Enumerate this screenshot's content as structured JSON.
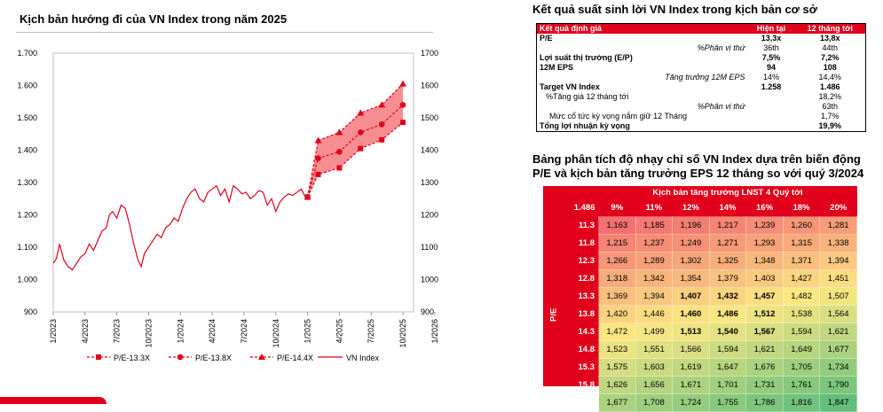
{
  "left_title": "Kịch bản hướng đi của VN Index trong năm 2025",
  "chart_data": {
    "type": "line",
    "title": "Kịch bản hướng đi của VN Index trong năm 2025",
    "ylim": [
      900,
      1700
    ],
    "yticks_left": [
      "1.700",
      "1.600",
      "1.500",
      "1.400",
      "1.300",
      "1.200",
      "1.100",
      "1.000",
      "900"
    ],
    "yticks_right": [
      "1700",
      "1600",
      "1500",
      "1400",
      "1300",
      "1200",
      "1100",
      "1000",
      "900"
    ],
    "xticks": [
      "1/2023",
      "4/2023",
      "7/2023",
      "10/2023",
      "1/2024",
      "4/2024",
      "7/2024",
      "10/2024",
      "1/2025",
      "4/2025",
      "7/2025",
      "10/2025",
      "1/2026"
    ],
    "legend": [
      "P/E-13.3X",
      "P/E-13.8X",
      "P/E-14.4X",
      "VN Index"
    ],
    "vnindex": [
      [
        0,
        1050
      ],
      [
        0.3,
        1065
      ],
      [
        0.6,
        1110
      ],
      [
        1,
        1060
      ],
      [
        1.4,
        1040
      ],
      [
        1.8,
        1030
      ],
      [
        2.2,
        1050
      ],
      [
        2.6,
        1070
      ],
      [
        3,
        1080
      ],
      [
        3.4,
        1110
      ],
      [
        3.8,
        1090
      ],
      [
        4.2,
        1120
      ],
      [
        4.6,
        1150
      ],
      [
        5,
        1160
      ],
      [
        5.3,
        1200
      ],
      [
        5.6,
        1210
      ],
      [
        6,
        1190
      ],
      [
        6.4,
        1230
      ],
      [
        6.8,
        1220
      ],
      [
        7.2,
        1170
      ],
      [
        7.6,
        1110
      ],
      [
        8,
        1060
      ],
      [
        8.3,
        1040
      ],
      [
        8.6,
        1080
      ],
      [
        9,
        1100
      ],
      [
        9.4,
        1120
      ],
      [
        9.8,
        1140
      ],
      [
        10.2,
        1130
      ],
      [
        10.6,
        1160
      ],
      [
        11,
        1170
      ],
      [
        11.4,
        1190
      ],
      [
        11.8,
        1180
      ],
      [
        12.2,
        1220
      ],
      [
        12.6,
        1250
      ],
      [
        13,
        1270
      ],
      [
        13.4,
        1280
      ],
      [
        13.8,
        1250
      ],
      [
        14.2,
        1240
      ],
      [
        14.6,
        1270
      ],
      [
        15,
        1280
      ],
      [
        15.4,
        1290
      ],
      [
        15.8,
        1260
      ],
      [
        16.2,
        1280
      ],
      [
        16.6,
        1240
      ],
      [
        17,
        1290
      ],
      [
        17.4,
        1280
      ],
      [
        17.8,
        1265
      ],
      [
        18.2,
        1270
      ],
      [
        18.6,
        1250
      ],
      [
        19,
        1260
      ],
      [
        19.4,
        1275
      ],
      [
        19.8,
        1270
      ],
      [
        20.2,
        1230
      ],
      [
        20.6,
        1250
      ],
      [
        21,
        1210
      ],
      [
        21.4,
        1240
      ],
      [
        21.8,
        1255
      ],
      [
        22.2,
        1265
      ],
      [
        22.6,
        1260
      ],
      [
        23,
        1270
      ],
      [
        23.4,
        1280
      ],
      [
        23.8,
        1255
      ],
      [
        24,
        1260
      ]
    ],
    "series": [
      {
        "name": "P/E-13.3X",
        "marker": "square",
        "x": [
          24,
          25,
          27,
          29,
          31,
          33
        ],
        "values": [
          1255,
          1325,
          1345,
          1405,
          1432,
          1486
        ]
      },
      {
        "name": "P/E-13.8X",
        "marker": "circle",
        "x": [
          24,
          25,
          27,
          29,
          31,
          33
        ],
        "values": [
          1255,
          1375,
          1395,
          1455,
          1480,
          1540
        ]
      },
      {
        "name": "P/E-14.4X",
        "marker": "triangle",
        "x": [
          24,
          25,
          27,
          29,
          31,
          33
        ],
        "values": [
          1255,
          1430,
          1455,
          1515,
          1540,
          1605
        ]
      }
    ]
  },
  "right_title": "Kết quả suất sinh lời VN Index trong kịch bản cơ sở",
  "results": {
    "header": [
      "Kết quả định giá",
      "Hiện tại",
      "12 tháng tới"
    ],
    "rows": [
      {
        "label": "P/E",
        "now": "13,3x",
        "next": "13,8x"
      },
      {
        "label": "%Phân vị thứ",
        "now": "36th",
        "next": "44th"
      },
      {
        "label": "Lợi suất thị trường (E/P)",
        "now": "7,5%",
        "next": "7,2%"
      },
      {
        "label": "12M EPS",
        "now": "94",
        "next": "108"
      },
      {
        "label": "Tăng trưởng 12M EPS",
        "now": "14%",
        "next": "14,4%"
      },
      {
        "label": "Target VN Index",
        "now": "1.258",
        "next": "1.486"
      },
      {
        "label": "%Tăng giá 12 tháng tới",
        "now": "",
        "next": "18,2%"
      },
      {
        "label": "%Phân vị thứ",
        "now": "",
        "next": "63th"
      },
      {
        "label": "Mức cổ tức kỳ vọng nắm giữ 12 Tháng",
        "now": "",
        "next": "1,7%"
      },
      {
        "label": "Tổng lợi nhuận kỳ vọng",
        "now": "",
        "next": "19,9%"
      }
    ]
  },
  "sensitivity_title": "Bảng phân tích độ nhạy chỉ số VN Index dựa trên biến động P/E và kịch bản tăng trưởng EPS 12 tháng so với quý 3/2024",
  "sensitivity": {
    "scenario_label": "Kịch bản tăng trưởng LNST 4 Quý tới",
    "corner": "1.486",
    "axis_label": "P/E",
    "growth": [
      "9%",
      "11%",
      "12%",
      "14%",
      "16%",
      "18%",
      "20%"
    ],
    "pe": [
      "11.3",
      "11.8",
      "12.3",
      "12.8",
      "13.3",
      "13.8",
      "14.3",
      "14.8",
      "15.3",
      "15.8",
      "16.3"
    ],
    "values": [
      [
        "1,163",
        "1,185",
        "1,196",
        "1,217",
        "1,239",
        "1,260",
        "1,281"
      ],
      [
        "1,215",
        "1,237",
        "1,249",
        "1,271",
        "1,293",
        "1,315",
        "1,338"
      ],
      [
        "1,266",
        "1,289",
        "1,302",
        "1,325",
        "1,348",
        "1,371",
        "1,394"
      ],
      [
        "1,318",
        "1,342",
        "1,354",
        "1,379",
        "1,403",
        "1,427",
        "1,451"
      ],
      [
        "1,369",
        "1,394",
        "1,407",
        "1,432",
        "1,457",
        "1,482",
        "1,507"
      ],
      [
        "1,420",
        "1,446",
        "1,460",
        "1,486",
        "1,512",
        "1,538",
        "1,564"
      ],
      [
        "1,472",
        "1,499",
        "1,513",
        "1,540",
        "1,567",
        "1,594",
        "1,621"
      ],
      [
        "1,523",
        "1,551",
        "1,566",
        "1,594",
        "1,621",
        "1,649",
        "1,677"
      ],
      [
        "1,575",
        "1,603",
        "1,619",
        "1,647",
        "1,676",
        "1,705",
        "1,734"
      ],
      [
        "1,626",
        "1,656",
        "1,671",
        "1,701",
        "1,731",
        "1,761",
        "1,790"
      ],
      [
        "1,677",
        "1,708",
        "1,724",
        "1,755",
        "1,786",
        "1,816",
        "1,847"
      ]
    ],
    "bold_cells": [
      [
        4,
        2
      ],
      [
        4,
        3
      ],
      [
        4,
        4
      ],
      [
        5,
        2
      ],
      [
        5,
        3
      ],
      [
        5,
        4
      ],
      [
        6,
        2
      ],
      [
        6,
        3
      ],
      [
        6,
        4
      ]
    ]
  }
}
